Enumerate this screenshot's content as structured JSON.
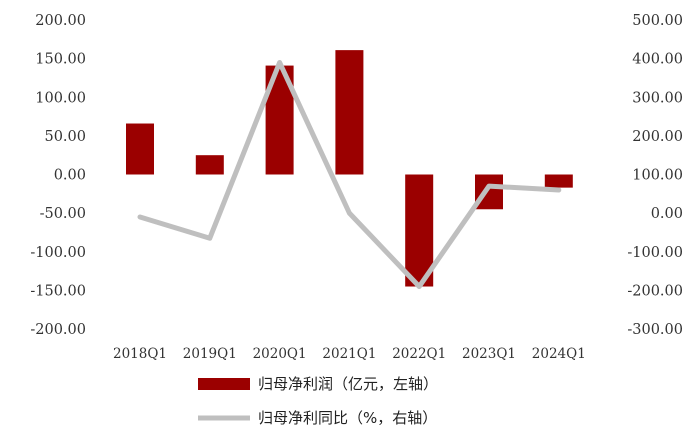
{
  "chart_data": {
    "type": "bar+line",
    "categories": [
      "2018Q1",
      "2019Q1",
      "2020Q1",
      "2021Q1",
      "2022Q1",
      "2023Q1",
      "2024Q1"
    ],
    "series": [
      {
        "name": "归母净利润（亿元，左轴）",
        "kind": "bar",
        "axis": "left",
        "color": "#9b0000",
        "values": [
          66,
          25,
          141,
          161,
          -145,
          -45,
          -17
        ]
      },
      {
        "name": "归母净利同比（%，右轴）",
        "kind": "line",
        "axis": "right",
        "color": "#bfbfbf",
        "values": [
          -10,
          -65,
          390,
          0,
          -190,
          70,
          60
        ]
      }
    ],
    "y_left": {
      "ylim": [
        -200,
        200
      ],
      "ticks": [
        200,
        150,
        100,
        50,
        0,
        -50,
        -100,
        -150,
        -200
      ],
      "tick_labels": [
        "200.00",
        "150.00",
        "100.00",
        "50.00",
        "0.00",
        "-50.00",
        "-100.00",
        "-150.00",
        "-200.00"
      ]
    },
    "y_right": {
      "ylim": [
        -300,
        500
      ],
      "ticks": [
        500,
        400,
        300,
        200,
        100,
        0,
        -100,
        -200,
        -300
      ],
      "tick_labels": [
        "500.00",
        "400.00",
        "300.00",
        "200.00",
        "100.00",
        "0.00",
        "-100.00",
        "-200.00",
        "-300.00"
      ]
    },
    "grid": false,
    "legend_position": "bottom-center"
  }
}
